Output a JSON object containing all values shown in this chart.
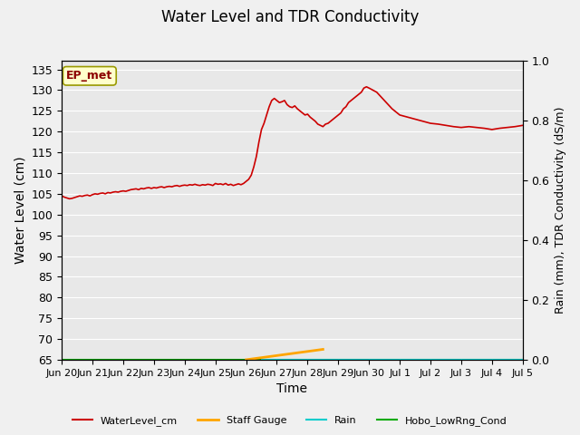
{
  "title": "Water Level and TDR Conductivity",
  "xlabel": "Time",
  "ylabel_left": "Water Level (cm)",
  "ylabel_right": "Rain (mm), TDR Conductivity (dS/m)",
  "ylim_left": [
    65,
    137
  ],
  "ylim_right": [
    0.0,
    1.0
  ],
  "yticks_left": [
    65,
    70,
    75,
    80,
    85,
    90,
    95,
    100,
    105,
    110,
    115,
    120,
    125,
    130,
    135
  ],
  "yticks_right": [
    0.0,
    0.2,
    0.4,
    0.6,
    0.8,
    1.0
  ],
  "bg_color": "#e8e8e8",
  "fig_bg": "#f0f0f0",
  "annotation_text": "EP_met",
  "annotation_bg": "#ffffcc",
  "annotation_border": "#999900",
  "annotation_color": "#8b0000",
  "wl_color": "#cc0000",
  "staff_color": "#ffa500",
  "rain_color": "#00cccc",
  "hobo_color": "#00aa00",
  "legend_labels": [
    "WaterLevel_cm",
    "Staff Gauge",
    "Rain",
    "Hobo_LowRng_Cond"
  ],
  "water_level_x_days": [
    0,
    0.083,
    0.167,
    0.25,
    0.333,
    0.417,
    0.5,
    0.583,
    0.667,
    0.75,
    0.833,
    0.917,
    1.0,
    1.083,
    1.167,
    1.25,
    1.333,
    1.417,
    1.5,
    1.583,
    1.667,
    1.75,
    1.833,
    1.917,
    2.0,
    2.083,
    2.167,
    2.25,
    2.333,
    2.417,
    2.5,
    2.583,
    2.667,
    2.75,
    2.833,
    2.917,
    3.0,
    3.083,
    3.167,
    3.25,
    3.333,
    3.417,
    3.5,
    3.583,
    3.667,
    3.75,
    3.833,
    3.917,
    4.0,
    4.083,
    4.167,
    4.25,
    4.333,
    4.417,
    4.5,
    4.583,
    4.667,
    4.75,
    4.833,
    4.917,
    5.0,
    5.083,
    5.167,
    5.25,
    5.333,
    5.417,
    5.5,
    5.583,
    5.667,
    5.75,
    5.833,
    5.917,
    6.0,
    6.083,
    6.167,
    6.25,
    6.333,
    6.417,
    6.5,
    6.583,
    6.667,
    6.75,
    6.833,
    6.917,
    7.0,
    7.083,
    7.167,
    7.25,
    7.333,
    7.417,
    7.5,
    7.583,
    7.667,
    7.75,
    7.833,
    7.917,
    8.0,
    8.083,
    8.167,
    8.25,
    8.333,
    8.417,
    8.5,
    8.583,
    8.667,
    8.75,
    8.833,
    8.917,
    9.0,
    9.083,
    9.167,
    9.25,
    9.333,
    9.417,
    9.5,
    9.583,
    9.667,
    9.75,
    9.833,
    9.917,
    10.0,
    10.25,
    10.5,
    10.75,
    11.0,
    11.25,
    11.5,
    11.75,
    12.0,
    12.25,
    12.5,
    12.75,
    13.0,
    13.25,
    13.5,
    13.75,
    14.0,
    14.25,
    14.5,
    14.75,
    15.0
  ],
  "water_level_y": [
    104.5,
    104.2,
    104.0,
    103.8,
    103.9,
    104.1,
    104.3,
    104.5,
    104.4,
    104.6,
    104.7,
    104.5,
    104.8,
    105.0,
    104.9,
    105.1,
    105.2,
    105.0,
    105.3,
    105.2,
    105.4,
    105.5,
    105.4,
    105.6,
    105.7,
    105.6,
    105.8,
    106.0,
    106.1,
    106.2,
    106.0,
    106.3,
    106.2,
    106.4,
    106.5,
    106.3,
    106.5,
    106.4,
    106.6,
    106.7,
    106.5,
    106.7,
    106.8,
    106.7,
    106.9,
    107.0,
    106.8,
    107.0,
    107.1,
    107.0,
    107.2,
    107.1,
    107.3,
    107.1,
    107.0,
    107.2,
    107.1,
    107.3,
    107.2,
    107.0,
    107.5,
    107.3,
    107.4,
    107.2,
    107.5,
    107.1,
    107.3,
    107.0,
    107.2,
    107.4,
    107.2,
    107.5,
    108.0,
    108.5,
    109.5,
    111.5,
    114.0,
    117.5,
    120.5,
    122.0,
    124.0,
    126.0,
    127.5,
    128.0,
    127.5,
    127.0,
    127.2,
    127.5,
    126.5,
    126.0,
    125.8,
    126.2,
    125.5,
    125.0,
    124.5,
    124.0,
    124.2,
    123.5,
    123.0,
    122.5,
    121.8,
    121.5,
    121.2,
    121.8,
    122.0,
    122.5,
    123.0,
    123.5,
    124.0,
    124.5,
    125.5,
    126.0,
    127.0,
    127.5,
    128.0,
    128.5,
    129.0,
    129.5,
    130.5,
    130.8,
    130.5,
    129.5,
    127.5,
    125.5,
    124.0,
    123.5,
    123.0,
    122.5,
    122.0,
    121.8,
    121.5,
    121.2,
    121.0,
    121.2,
    121.0,
    120.8,
    120.5,
    120.8,
    121.0,
    121.2,
    121.5
  ],
  "staff_x": [
    6.0,
    6.5,
    7.0,
    7.5,
    8.0,
    8.5
  ],
  "staff_y": [
    65.0,
    65.5,
    66.0,
    66.5,
    67.0,
    67.5
  ],
  "rain_x": [
    6.5,
    6.6,
    6.7,
    6.8,
    6.9,
    7.0,
    7.1,
    7.2,
    7.3,
    7.5,
    8.0,
    9.0,
    10.0,
    11.0,
    12.0,
    13.0,
    14.0,
    15.0
  ],
  "rain_y": [
    65.0,
    65.0,
    65.0,
    65.0,
    65.0,
    65.0,
    65.0,
    65.0,
    65.0,
    65.0,
    65.0,
    65.0,
    65.0,
    65.0,
    65.0,
    65.0,
    65.0,
    65.0
  ],
  "hobo_x": [
    0.0,
    1.0,
    2.0,
    3.0,
    4.0,
    5.0,
    6.0,
    7.0,
    8.0,
    9.0,
    10.0,
    11.0,
    12.0,
    13.0,
    14.0,
    15.0
  ],
  "hobo_y": [
    65.0,
    65.0,
    65.0,
    65.0,
    65.0,
    65.0,
    65.0,
    65.0,
    65.0,
    65.0,
    65.0,
    65.0,
    65.0,
    65.0,
    65.0,
    65.0
  ],
  "x_tick_days": [
    0,
    1,
    2,
    3,
    4,
    5,
    6,
    7,
    8,
    9,
    10,
    11,
    12,
    13,
    14,
    15
  ],
  "x_tick_labels": [
    "Jun 20",
    "Jun 21",
    "Jun 22",
    "Jun 23",
    "Jun 24",
    "Jun 25",
    "Jun 26",
    "Jun 27",
    "Jun 28",
    "Jun 29",
    "Jun 30",
    "Jul 1",
    "Jul 2",
    "Jul 3",
    "Jul 4",
    "Jul 5"
  ]
}
